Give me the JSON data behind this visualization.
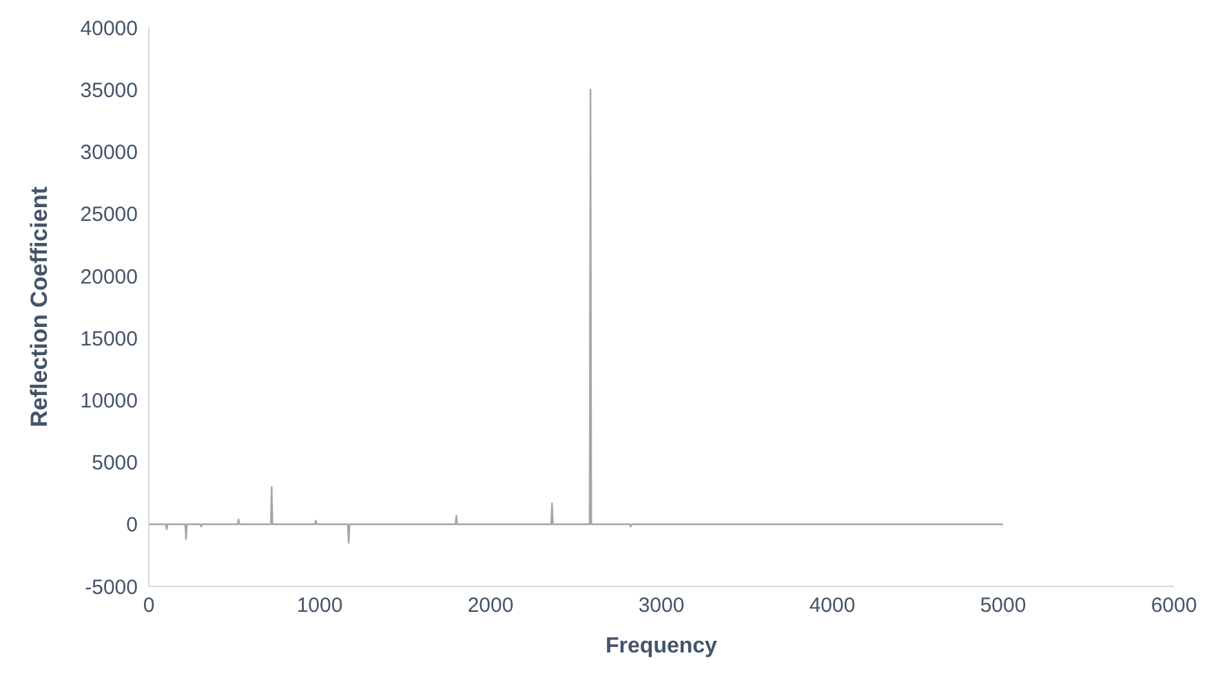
{
  "chart_data": {
    "type": "line",
    "xlabel": "Frequency",
    "ylabel": "Reflection  Coefficient",
    "series": [
      {
        "color": "#a6a6a6",
        "x": [
          0,
          100,
          105,
          110,
          213,
          218,
          223,
          302,
          307,
          312,
          520,
          525,
          530,
          714,
          719,
          724,
          972,
          977,
          982,
          1165,
          1170,
          1175,
          1795,
          1800,
          1805,
          2355,
          2360,
          2365,
          2580,
          2585,
          2590,
          2815,
          2820,
          2825,
          5000
        ],
        "values": [
          0,
          0,
          -400,
          0,
          0,
          -1200,
          0,
          0,
          -200,
          0,
          0,
          400,
          0,
          0,
          3000,
          0,
          0,
          300,
          0,
          0,
          -1500,
          0,
          0,
          700,
          0,
          0,
          1700,
          0,
          0,
          35000,
          0,
          0,
          -200,
          0,
          0
        ]
      }
    ],
    "xlim": [
      0,
      6000
    ],
    "xticks": [
      0,
      1000,
      2000,
      3000,
      4000,
      5000,
      6000
    ],
    "ylim": [
      -5000,
      40000
    ],
    "yticks": [
      -5000,
      0,
      5000,
      10000,
      15000,
      20000,
      25000,
      30000,
      35000,
      40000
    ],
    "grid": false,
    "marker": "none",
    "line_style": "solid"
  }
}
